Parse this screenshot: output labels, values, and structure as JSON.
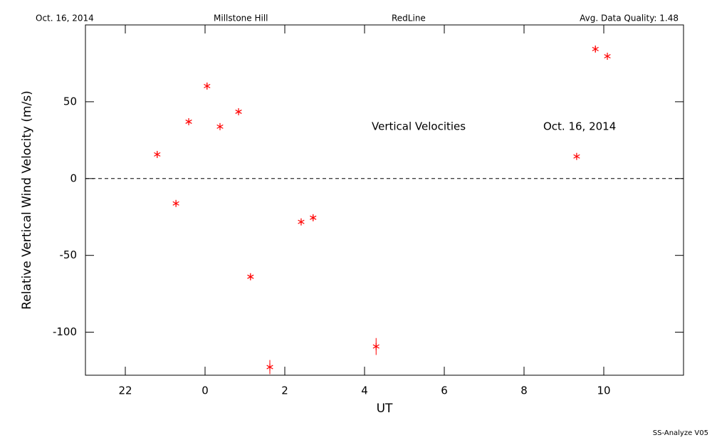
{
  "header": {
    "date": "Oct. 16, 2014",
    "site": "Millstone Hill",
    "instrument": "RedLine",
    "quality": "Avg. Data Quality: 1.48"
  },
  "footer": "SS-Analyze V05",
  "chart_data": {
    "type": "scatter",
    "annotations": [
      "Vertical Velocities",
      "Oct. 16, 2014"
    ],
    "x_label": "UT",
    "y_label": "Relative Vertical Wind Velocity (m/s)",
    "series": [
      {
        "name": "Vertical Velocities",
        "color": "#ff0000",
        "x": [
          -1.2,
          -0.73,
          -0.41,
          0.05,
          0.375,
          0.84,
          1.14,
          1.625,
          2.41,
          2.71,
          4.29,
          9.32,
          9.79,
          10.09
        ],
        "values": [
          15.7,
          -16.2,
          37.0,
          60.2,
          33.8,
          43.5,
          -63.9,
          -122.7,
          -28.2,
          -25.5,
          -109.3,
          14.4,
          84.3,
          79.6
        ],
        "errors": [
          2,
          2,
          2,
          2,
          2,
          2,
          2,
          4.6,
          2,
          2,
          5.5,
          2,
          2,
          2
        ]
      }
    ],
    "xlim": [
      -3,
      12
    ],
    "xticks": [
      {
        "value": -2,
        "label": "22"
      },
      0,
      2,
      4,
      6,
      8,
      10
    ],
    "ylim": [
      -128,
      100
    ],
    "yticks": [
      -100,
      -50,
      0,
      50
    ],
    "zero_line": true
  }
}
